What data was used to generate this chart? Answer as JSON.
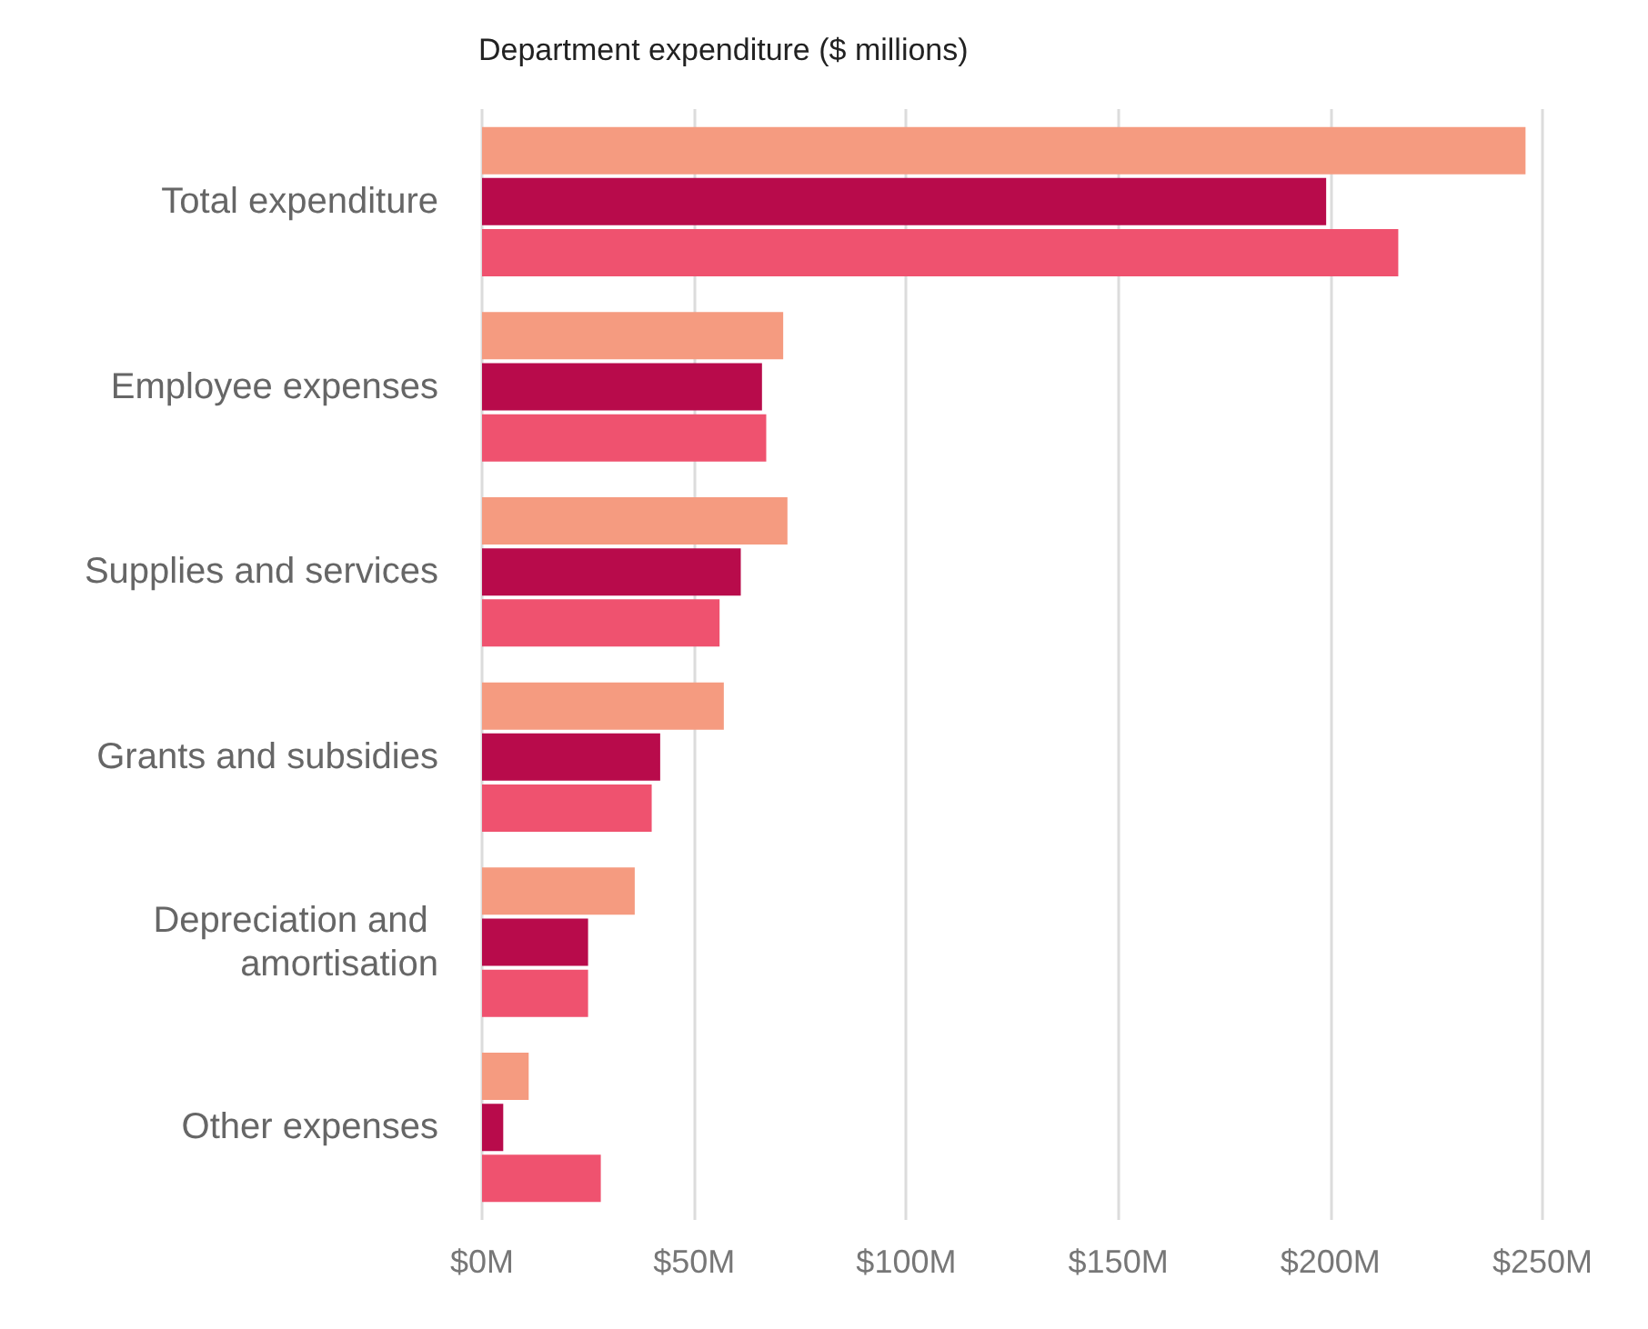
{
  "chart_data": {
    "type": "bar",
    "orientation": "horizontal",
    "title": "Department expenditure ($ millions)",
    "categories": [
      "Total expenditure",
      "Employee expenses",
      "Supplies and services",
      "Grants and subsidies",
      "Depreciation and amortisation",
      "Other expenses"
    ],
    "series": [
      {
        "color": "#f59b80",
        "values": [
          246,
          71,
          72,
          57,
          36,
          11
        ]
      },
      {
        "color": "#b80b4b",
        "values": [
          199,
          66,
          61,
          42,
          25,
          5
        ]
      },
      {
        "color": "#ef526f",
        "values": [
          216,
          67,
          56,
          40,
          25,
          28
        ]
      }
    ],
    "xlim": [
      0,
      250
    ],
    "xticks": [
      {
        "value": 0,
        "label": "$0M"
      },
      {
        "value": 50,
        "label": "$50M"
      },
      {
        "value": 100,
        "label": "$100M"
      },
      {
        "value": 150,
        "label": "$150M"
      },
      {
        "value": 200,
        "label": "$200M"
      },
      {
        "value": 250,
        "label": "$250M"
      }
    ],
    "grid": "x"
  }
}
